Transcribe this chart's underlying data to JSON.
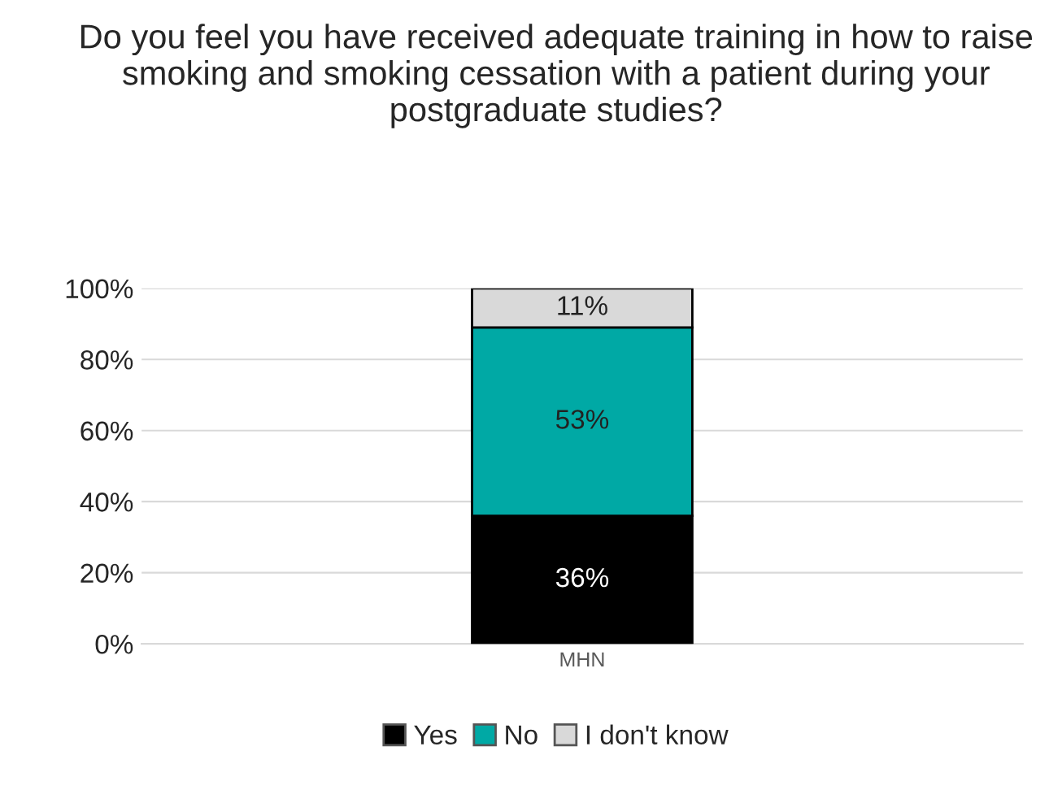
{
  "chart_data": {
    "type": "bar",
    "stacked": true,
    "title": "Do you feel you have received adequate training in how to raise smoking and smoking cessation with a patient during your postgraduate studies?",
    "categories": [
      "MHN"
    ],
    "series": [
      {
        "name": "Yes",
        "color": "#000000",
        "values": [
          36
        ],
        "value_labels": [
          "36%"
        ]
      },
      {
        "name": "No",
        "color": "#00a9a5",
        "values": [
          53
        ],
        "value_labels": [
          "53%"
        ]
      },
      {
        "name": "I don't know",
        "color": "#d9d9d9",
        "values": [
          11
        ],
        "value_labels": [
          "11%"
        ]
      }
    ],
    "ylim": [
      0,
      100
    ],
    "yticks": [
      {
        "value": 0,
        "label": "0%"
      },
      {
        "value": 20,
        "label": "20%"
      },
      {
        "value": 40,
        "label": "40%"
      },
      {
        "value": 60,
        "label": "60%"
      },
      {
        "value": 80,
        "label": "80%"
      },
      {
        "value": 100,
        "label": "100%"
      }
    ],
    "grid": "y",
    "legend": "bottom"
  }
}
